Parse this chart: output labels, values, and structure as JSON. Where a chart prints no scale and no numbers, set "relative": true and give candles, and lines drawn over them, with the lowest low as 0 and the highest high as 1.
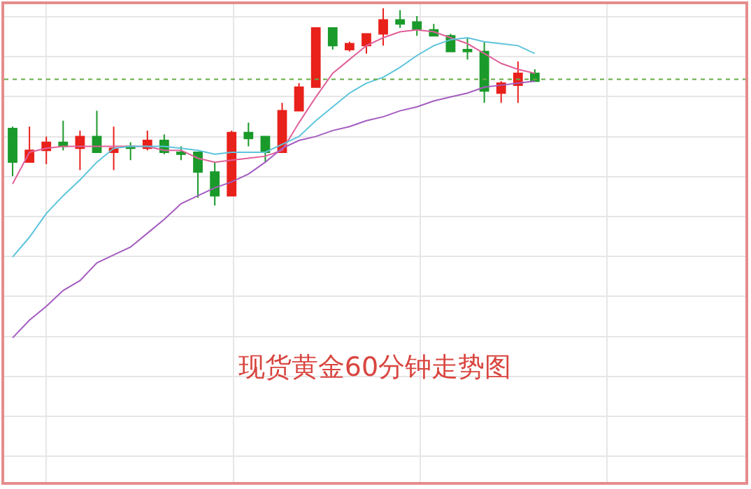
{
  "chart_data": {
    "type": "candlestick",
    "title": "现货黄金60分钟走势图",
    "relative": true,
    "grid": true,
    "categories": [
      null,
      null,
      null,
      null,
      null,
      null,
      null,
      null,
      null,
      null,
      null,
      null,
      null,
      null,
      null,
      null,
      null,
      null,
      null,
      null,
      null,
      null,
      null,
      null,
      null,
      null,
      null,
      null,
      null,
      null,
      null,
      null
    ],
    "ohlc": [
      [
        0.39,
        0.4,
        0.15,
        0.22
      ],
      [
        0.22,
        0.4,
        0.22,
        0.28
      ],
      [
        0.28,
        0.35,
        0.21,
        0.32
      ],
      [
        0.32,
        0.43,
        0.28,
        0.3
      ],
      [
        0.29,
        0.38,
        0.18,
        0.35
      ],
      [
        0.35,
        0.48,
        0.27,
        0.27
      ],
      [
        0.27,
        0.4,
        0.18,
        0.29
      ],
      [
        0.3,
        0.32,
        0.23,
        0.29
      ],
      [
        0.29,
        0.38,
        0.28,
        0.33
      ],
      [
        0.33,
        0.36,
        0.26,
        0.27
      ],
      [
        0.27,
        0.3,
        0.23,
        0.26
      ],
      [
        0.27,
        0.27,
        0.04,
        0.17
      ],
      [
        0.17,
        0.22,
        0,
        0.05
      ],
      [
        0.05,
        0.38,
        0.05,
        0.37
      ],
      [
        0.37,
        0.42,
        0.3,
        0.34
      ],
      [
        0.35,
        0.35,
        0.22,
        0.27
      ],
      [
        0.27,
        0.52,
        0.27,
        0.48
      ],
      [
        0.48,
        0.62,
        0.48,
        0.6
      ],
      [
        0.6,
        0.9,
        0.6,
        0.9
      ],
      [
        0.9,
        0.9,
        0.79,
        0.81
      ],
      [
        0.79,
        0.83,
        0.78,
        0.82
      ],
      [
        0.81,
        0.87,
        0.77,
        0.87
      ],
      [
        0.87,
        1,
        0.81,
        0.94
      ],
      [
        0.94,
        0.99,
        0.9,
        0.92
      ],
      [
        0.93,
        0.96,
        0.86,
        0.89
      ],
      [
        0.89,
        0.92,
        0.86,
        0.86
      ],
      [
        0.86,
        0.87,
        0.78,
        0.78
      ],
      [
        0.79,
        0.85,
        0.74,
        0.78
      ],
      [
        0.78,
        0.83,
        0.52,
        0.58
      ],
      [
        0.57,
        0.63,
        0.52,
        0.62
      ],
      [
        0.61,
        0.73,
        0.52,
        0.67
      ],
      [
        0.67,
        0.69,
        0.63,
        0.63
      ]
    ],
    "colors": [
      "#1a9a2a",
      "#e8211b",
      "#e8211b",
      "#1a9a2a",
      "#e8211b",
      "#1a9a2a",
      "#e8211b",
      "#1a9a2a",
      "#e8211b",
      "#1a9a2a",
      "#1a9a2a",
      "#1a9a2a",
      "#1a9a2a",
      "#e8211b",
      "#1a9a2a",
      "#1a9a2a",
      "#e8211b",
      "#e8211b",
      "#e8211b",
      "#1a9a2a",
      "#e8211b",
      "#e8211b",
      "#e8211b",
      "#1a9a2a",
      "#1a9a2a",
      "#1a9a2a",
      "#1a9a2a",
      "#1a9a2a",
      "#1a9a2a",
      "#e8211b",
      "#e8211b",
      "#1a9a2a"
    ],
    "series": [
      {
        "type": "line",
        "color": "#e0609a",
        "values": [
          0.11,
          0.27,
          0.29,
          0.3,
          0.3,
          0.3,
          0.3,
          0.3,
          0.3,
          0.28,
          0.28,
          0.24,
          0.22,
          0.23,
          0.24,
          0.25,
          0.28,
          0.42,
          0.55,
          0.67,
          0.74,
          0.81,
          0.85,
          0.88,
          0.89,
          0.88,
          0.85,
          0.82,
          0.77,
          0.72,
          0.69,
          0.67
        ]
      },
      {
        "type": "line",
        "color": "#5cc4dc",
        "values": [
          -0.26,
          -0.16,
          -0.04,
          0.05,
          0.13,
          0.22,
          0.29,
          0.3,
          0.3,
          0.3,
          0.29,
          0.28,
          0.26,
          0.27,
          0.27,
          0.27,
          0.31,
          0.35,
          0.43,
          0.5,
          0.57,
          0.62,
          0.65,
          0.7,
          0.76,
          0.81,
          0.84,
          0.85,
          0.83,
          0.82,
          0.81,
          0.77
        ]
      },
      {
        "type": "line",
        "color": "#a45cc0",
        "values": [
          -0.67,
          -0.58,
          -0.51,
          -0.43,
          -0.38,
          -0.29,
          -0.25,
          -0.21,
          -0.14,
          -0.07,
          0.01,
          0.05,
          0.09,
          0.12,
          0.16,
          0.22,
          0.29,
          0.33,
          0.35,
          0.38,
          0.4,
          0.43,
          0.45,
          0.48,
          0.5,
          0.53,
          0.55,
          0.57,
          0.6,
          0.61,
          0.62,
          0.63
        ]
      }
    ],
    "ref_lines": [
      {
        "axis": "y",
        "value": 0.64,
        "color": "#66aa44",
        "line_style": "dotted"
      }
    ]
  }
}
